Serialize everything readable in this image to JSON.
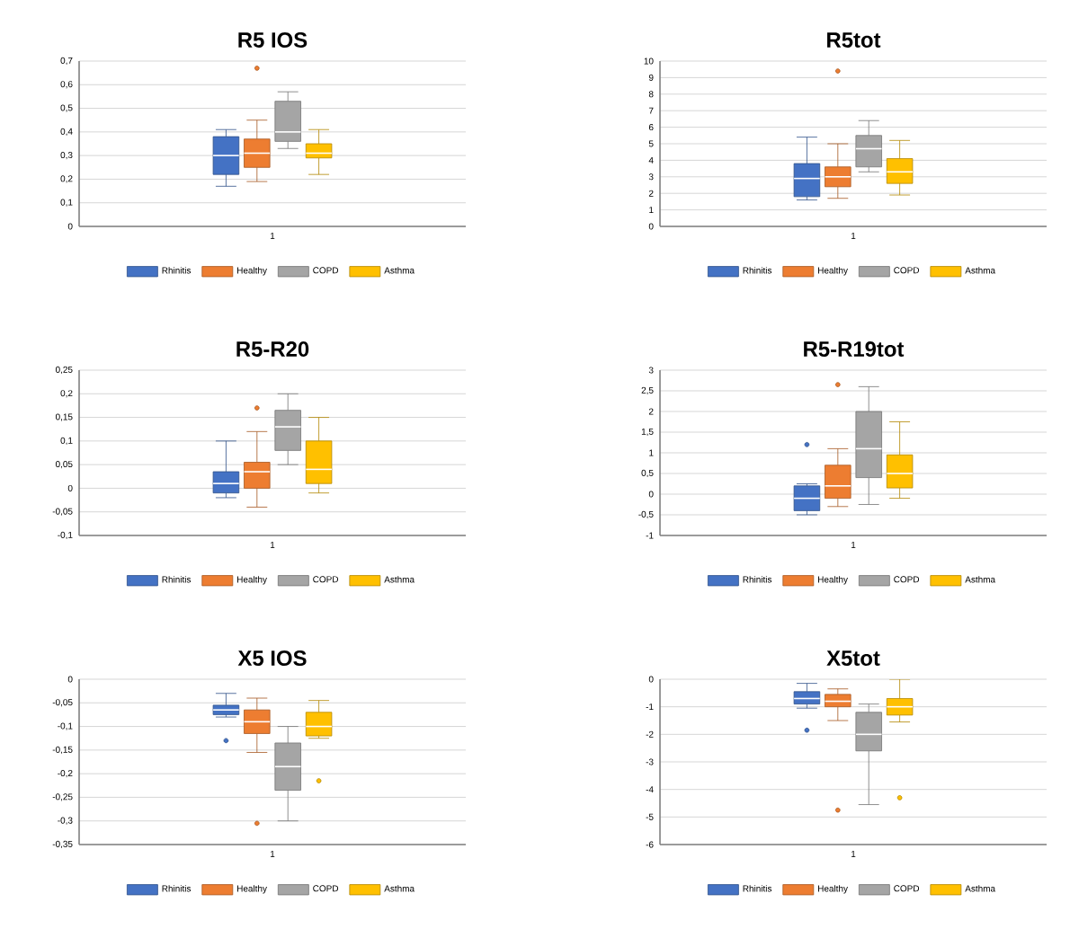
{
  "chart_data": [
    {
      "type": "box",
      "title": "R5 IOS",
      "categories": [
        "1"
      ],
      "ylim": [
        0,
        0.7
      ],
      "yticks": [
        0,
        {
          "value": 0.1,
          "label": "0,1"
        },
        {
          "value": 0.2,
          "label": "0,2"
        },
        {
          "value": 0.3,
          "label": "0,3"
        },
        {
          "value": 0.4,
          "label": "0,4"
        },
        {
          "value": 0.5,
          "label": "0,5"
        },
        {
          "value": 0.6,
          "label": "0,6"
        },
        {
          "value": 0.7,
          "label": "0,7"
        }
      ],
      "grid": "y",
      "legend": "bottom",
      "series": [
        {
          "name": "Rhinitis",
          "color": "#4472c4",
          "boxes": [
            {
              "low": 0.17,
              "q1": 0.22,
              "median": 0.3,
              "q3": 0.38,
              "high": 0.41
            }
          ]
        },
        {
          "name": "Healthy",
          "color": "#ed7d31",
          "boxes": [
            {
              "low": 0.19,
              "q1": 0.25,
              "median": 0.31,
              "q3": 0.37,
              "high": 0.45,
              "outliers": [
                0.67
              ]
            }
          ]
        },
        {
          "name": "COPD",
          "color": "#a5a5a5",
          "boxes": [
            {
              "low": 0.33,
              "q1": 0.36,
              "median": 0.4,
              "q3": 0.53,
              "high": 0.57
            }
          ]
        },
        {
          "name": "Asthma",
          "color": "#ffc000",
          "boxes": [
            {
              "low": 0.22,
              "q1": 0.29,
              "median": 0.31,
              "q3": 0.35,
              "high": 0.41
            }
          ]
        }
      ]
    },
    {
      "type": "box",
      "title": "R5tot",
      "categories": [
        "1"
      ],
      "ylim": [
        0,
        10
      ],
      "yticks": [
        0,
        1,
        2,
        3,
        4,
        5,
        6,
        7,
        8,
        9,
        10
      ],
      "grid": "y",
      "legend": "bottom",
      "series": [
        {
          "name": "Rhinitis",
          "color": "#4472c4",
          "boxes": [
            {
              "low": 1.6,
              "q1": 1.8,
              "median": 2.9,
              "q3": 3.8,
              "high": 5.4
            }
          ]
        },
        {
          "name": "Healthy",
          "color": "#ed7d31",
          "boxes": [
            {
              "low": 1.7,
              "q1": 2.4,
              "median": 3.0,
              "q3": 3.6,
              "high": 5.0,
              "outliers": [
                9.4
              ]
            }
          ]
        },
        {
          "name": "COPD",
          "color": "#a5a5a5",
          "boxes": [
            {
              "low": 3.3,
              "q1": 3.6,
              "median": 4.7,
              "q3": 5.5,
              "high": 6.4
            }
          ]
        },
        {
          "name": "Asthma",
          "color": "#ffc000",
          "boxes": [
            {
              "low": 1.9,
              "q1": 2.6,
              "median": 3.3,
              "q3": 4.1,
              "high": 5.2
            }
          ]
        }
      ]
    },
    {
      "type": "box",
      "title": "R5-R20",
      "categories": [
        "1"
      ],
      "ylim": [
        -0.1,
        0.25
      ],
      "yticks": [
        {
          "value": -0.1,
          "label": "-0,1"
        },
        {
          "value": -0.05,
          "label": "-0,05"
        },
        0,
        {
          "value": 0.05,
          "label": "0,05"
        },
        {
          "value": 0.1,
          "label": "0,1"
        },
        {
          "value": 0.15,
          "label": "0,15"
        },
        {
          "value": 0.2,
          "label": "0,2"
        },
        {
          "value": 0.25,
          "label": "0,25"
        }
      ],
      "grid": "y",
      "legend": "bottom",
      "series": [
        {
          "name": "Rhinitis",
          "color": "#4472c4",
          "boxes": [
            {
              "low": -0.02,
              "q1": -0.01,
              "median": 0.01,
              "q3": 0.035,
              "high": 0.1
            }
          ]
        },
        {
          "name": "Healthy",
          "color": "#ed7d31",
          "boxes": [
            {
              "low": -0.04,
              "q1": 0.0,
              "median": 0.035,
              "q3": 0.055,
              "high": 0.12,
              "outliers": [
                0.17
              ]
            }
          ]
        },
        {
          "name": "COPD",
          "color": "#a5a5a5",
          "boxes": [
            {
              "low": 0.05,
              "q1": 0.08,
              "median": 0.13,
              "q3": 0.165,
              "high": 0.2
            }
          ]
        },
        {
          "name": "Asthma",
          "color": "#ffc000",
          "boxes": [
            {
              "low": -0.01,
              "q1": 0.01,
              "median": 0.04,
              "q3": 0.1,
              "high": 0.15
            }
          ]
        }
      ]
    },
    {
      "type": "box",
      "title": "R5-R19tot",
      "categories": [
        "1"
      ],
      "ylim": [
        -1,
        3
      ],
      "yticks": [
        -1,
        {
          "value": -0.5,
          "label": "-0,5"
        },
        0,
        {
          "value": 0.5,
          "label": "0,5"
        },
        1,
        {
          "value": 1.5,
          "label": "1,5"
        },
        2,
        {
          "value": 2.5,
          "label": "2,5"
        },
        3
      ],
      "grid": "y",
      "legend": "bottom",
      "series": [
        {
          "name": "Rhinitis",
          "color": "#4472c4",
          "boxes": [
            {
              "low": -0.5,
              "q1": -0.4,
              "median": -0.1,
              "q3": 0.2,
              "high": 0.25,
              "outliers": [
                1.2
              ]
            }
          ]
        },
        {
          "name": "Healthy",
          "color": "#ed7d31",
          "boxes": [
            {
              "low": -0.3,
              "q1": -0.1,
              "median": 0.2,
              "q3": 0.7,
              "high": 1.1,
              "outliers": [
                2.65
              ]
            }
          ]
        },
        {
          "name": "COPD",
          "color": "#a5a5a5",
          "boxes": [
            {
              "low": -0.25,
              "q1": 0.4,
              "median": 1.1,
              "q3": 2.0,
              "high": 2.6
            }
          ]
        },
        {
          "name": "Asthma",
          "color": "#ffc000",
          "boxes": [
            {
              "low": -0.1,
              "q1": 0.15,
              "median": 0.5,
              "q3": 0.95,
              "high": 1.75
            }
          ]
        }
      ]
    },
    {
      "type": "box",
      "title": "X5 IOS",
      "categories": [
        "1"
      ],
      "ylim": [
        -0.35,
        0
      ],
      "yticks": [
        {
          "value": -0.35,
          "label": "-0,35"
        },
        {
          "value": -0.3,
          "label": "-0,3"
        },
        {
          "value": -0.25,
          "label": "-0,25"
        },
        {
          "value": -0.2,
          "label": "-0,2"
        },
        {
          "value": -0.15,
          "label": "-0,15"
        },
        {
          "value": -0.1,
          "label": "-0,1"
        },
        {
          "value": -0.05,
          "label": "-0,05"
        },
        0
      ],
      "grid": "y",
      "legend": "bottom",
      "series": [
        {
          "name": "Rhinitis",
          "color": "#4472c4",
          "boxes": [
            {
              "low": -0.08,
              "q1": -0.075,
              "median": -0.065,
              "q3": -0.055,
              "high": -0.03,
              "outliers": [
                -0.13
              ]
            }
          ]
        },
        {
          "name": "Healthy",
          "color": "#ed7d31",
          "boxes": [
            {
              "low": -0.155,
              "q1": -0.115,
              "median": -0.09,
              "q3": -0.065,
              "high": -0.04,
              "outliers": [
                -0.305
              ]
            }
          ]
        },
        {
          "name": "COPD",
          "color": "#a5a5a5",
          "boxes": [
            {
              "low": -0.3,
              "q1": -0.235,
              "median": -0.185,
              "q3": -0.135,
              "high": -0.1
            }
          ]
        },
        {
          "name": "Asthma",
          "color": "#ffc000",
          "boxes": [
            {
              "low": -0.125,
              "q1": -0.12,
              "median": -0.1,
              "q3": -0.07,
              "high": -0.045,
              "outliers": [
                -0.215
              ]
            }
          ]
        }
      ]
    },
    {
      "type": "box",
      "title": "X5tot",
      "categories": [
        "1"
      ],
      "ylim": [
        -6,
        0
      ],
      "yticks": [
        -6,
        -5,
        -4,
        -3,
        -2,
        -1,
        0
      ],
      "grid": "y",
      "legend": "bottom",
      "series": [
        {
          "name": "Rhinitis",
          "color": "#4472c4",
          "boxes": [
            {
              "low": -1.05,
              "q1": -0.9,
              "median": -0.7,
              "q3": -0.45,
              "high": -0.15,
              "outliers": [
                -1.85
              ]
            }
          ]
        },
        {
          "name": "Healthy",
          "color": "#ed7d31",
          "boxes": [
            {
              "low": -1.5,
              "q1": -1.0,
              "median": -0.8,
              "q3": -0.55,
              "high": -0.35,
              "outliers": [
                -4.75
              ]
            }
          ]
        },
        {
          "name": "COPD",
          "color": "#a5a5a5",
          "boxes": [
            {
              "low": -4.55,
              "q1": -2.6,
              "median": -2.0,
              "q3": -1.2,
              "high": -0.9
            }
          ]
        },
        {
          "name": "Asthma",
          "color": "#ffc000",
          "boxes": [
            {
              "low": -1.55,
              "q1": -1.3,
              "median": -1.0,
              "q3": -0.7,
              "high": 0.0,
              "outliers": [
                -4.3
              ]
            }
          ]
        }
      ]
    }
  ]
}
